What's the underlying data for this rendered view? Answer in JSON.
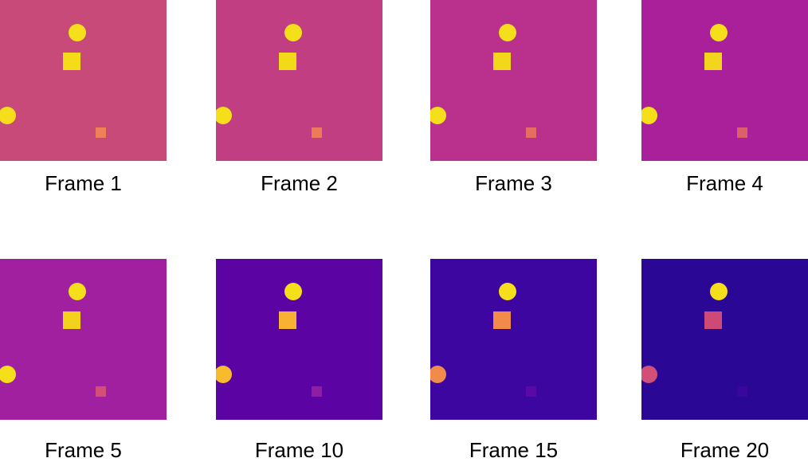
{
  "frames": [
    {
      "label": "Frame 1",
      "background": "#c84a79",
      "marks": [
        {
          "name": "top-circle",
          "color": "#f5df1b"
        },
        {
          "name": "center-square",
          "color": "#f4dc18"
        },
        {
          "name": "left-circle",
          "color": "#f4df1a"
        },
        {
          "name": "small-square",
          "color": "#ef8057"
        }
      ]
    },
    {
      "label": "Frame 2",
      "background": "#c23e82",
      "marks": [
        {
          "name": "top-circle",
          "color": "#f5df1b"
        },
        {
          "name": "center-square",
          "color": "#f3da18"
        },
        {
          "name": "left-circle",
          "color": "#f4df1a"
        },
        {
          "name": "small-square",
          "color": "#ee7a59"
        }
      ]
    },
    {
      "label": "Frame 3",
      "background": "#b9318d",
      "marks": [
        {
          "name": "top-circle",
          "color": "#f5df1b"
        },
        {
          "name": "center-square",
          "color": "#f2d71a"
        },
        {
          "name": "left-circle",
          "color": "#f4df1a"
        },
        {
          "name": "small-square",
          "color": "#e76d62"
        }
      ]
    },
    {
      "label": "Frame 4",
      "background": "#a9209a",
      "marks": [
        {
          "name": "top-circle",
          "color": "#f5df1b"
        },
        {
          "name": "center-square",
          "color": "#f2d51c"
        },
        {
          "name": "left-circle",
          "color": "#f4df1a"
        },
        {
          "name": "small-square",
          "color": "#de5f6c"
        }
      ]
    },
    {
      "label": "Frame 5",
      "background": "#a020a0",
      "marks": [
        {
          "name": "top-circle",
          "color": "#f5df1b"
        },
        {
          "name": "center-square",
          "color": "#f2d21c"
        },
        {
          "name": "left-circle",
          "color": "#f4df1a"
        },
        {
          "name": "small-square",
          "color": "#d44f76"
        }
      ]
    },
    {
      "label": "Frame 10",
      "background": "#5c03a3",
      "marks": [
        {
          "name": "top-circle",
          "color": "#f5df1b"
        },
        {
          "name": "center-square",
          "color": "#f8b132"
        },
        {
          "name": "left-circle",
          "color": "#f9bb2e"
        },
        {
          "name": "small-square",
          "color": "#8f1fa0"
        }
      ]
    },
    {
      "label": "Frame 15",
      "background": "#3d06a0",
      "marks": [
        {
          "name": "top-circle",
          "color": "#f5df1b"
        },
        {
          "name": "center-square",
          "color": "#f28a4a"
        },
        {
          "name": "left-circle",
          "color": "#f08b4c"
        },
        {
          "name": "small-square",
          "color": "#5a0aa4"
        }
      ]
    },
    {
      "label": "Frame 20",
      "background": "#2a0795",
      "marks": [
        {
          "name": "top-circle",
          "color": "#f5df1b"
        },
        {
          "name": "center-square",
          "color": "#ce4a76"
        },
        {
          "name": "left-circle",
          "color": "#d0507a"
        },
        {
          "name": "small-square",
          "color": "#3a079e"
        }
      ]
    }
  ]
}
